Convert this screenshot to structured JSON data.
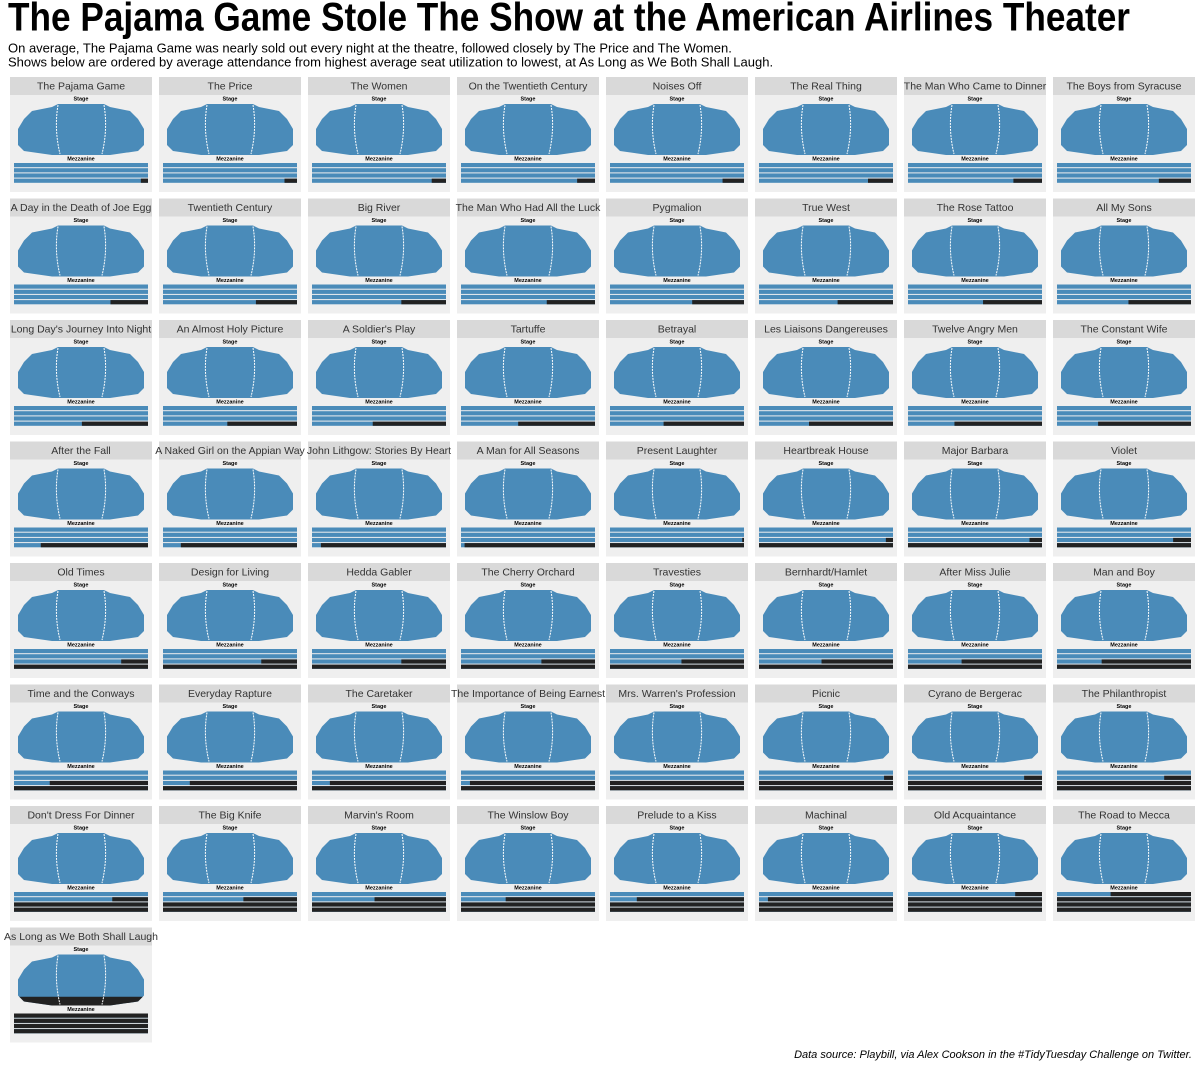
{
  "chart_data": {
    "type": "seatmap",
    "title": "The Pajama Game Stole The Show at the American Airlines Theater",
    "subtitle": [
      "On average, The Pajama Game was nearly sold out every night at the theatre, followed closely by The Price and The Women.",
      "Shows below are ordered by average attendance from highest average seat utilization to lowest, at As Long as We Both Shall Laugh."
    ],
    "stage_label": "Stage",
    "mezzanine_label": "Mezzanine",
    "source": "Data source: Playbill, via Alex Cookson in the #TidyTuesday Challenge on Twitter.",
    "filled_color": "#4a8bb9",
    "empty_color": "#222222",
    "categories": [
      "The Pajama Game",
      "The Price",
      "The Women",
      "On the Twentieth Century",
      "Noises Off",
      "The Real Thing",
      "The Man Who Came to Dinner",
      "The Boys from Syracuse",
      "A Day in the Death of Joe Egg",
      "Twentieth Century",
      "Big River",
      "The Man Who Had All the Luck",
      "Pygmalion",
      "True West",
      "The Rose Tattoo",
      "All My Sons",
      "Long Day's Journey Into Night",
      "An Almost Holy Picture",
      "A Soldier's Play",
      "Tartuffe",
      "Betrayal",
      "Les Liaisons Dangereuses",
      "Twelve Angry Men",
      "The Constant Wife",
      "After the Fall",
      "A Naked Girl on the Appian Way",
      "John Lithgow: Stories By Heart",
      "A Man for All Seasons",
      "Present Laughter",
      "Heartbreak House",
      "Major Barbara",
      "Violet",
      "Old Times",
      "Design for Living",
      "Hedda Gabler",
      "The Cherry Orchard",
      "Travesties",
      "Bernhardt/Hamlet",
      "After Miss Julie",
      "Man and Boy",
      "Time and the Conways",
      "Everyday Rapture",
      "The Caretaker",
      "The Importance of Being Earnest",
      "Mrs. Warren's Profession",
      "Picnic",
      "Cyrano de Bergerac",
      "The Philanthropist",
      "Don't Dress For Dinner",
      "The Big Knife",
      "Marvin's Room",
      "The Winslow Boy",
      "Prelude to a Kiss",
      "Machinal",
      "Old Acquaintance",
      "The Road to Mecca",
      "As Long as We Both Shall Laugh"
    ],
    "values": [
      99.6,
      99.3,
      99.2,
      99.0,
      98.8,
      98.6,
      98.4,
      98.2,
      97.9,
      97.7,
      97.5,
      97.3,
      97.1,
      96.9,
      96.7,
      96.5,
      96.3,
      96.1,
      95.9,
      95.7,
      95.5,
      95.3,
      95.1,
      94.8,
      94,
      93.5,
      93,
      92.7,
      92.4,
      92.1,
      91.8,
      91.5,
      91,
      90.5,
      90,
      89.5,
      89,
      88.5,
      88,
      87.5,
      87,
      86.5,
      86,
      85.5,
      85,
      84.5,
      84,
      83.5,
      83,
      82,
      81,
      80,
      79,
      78,
      76,
      73,
      58
    ]
  }
}
